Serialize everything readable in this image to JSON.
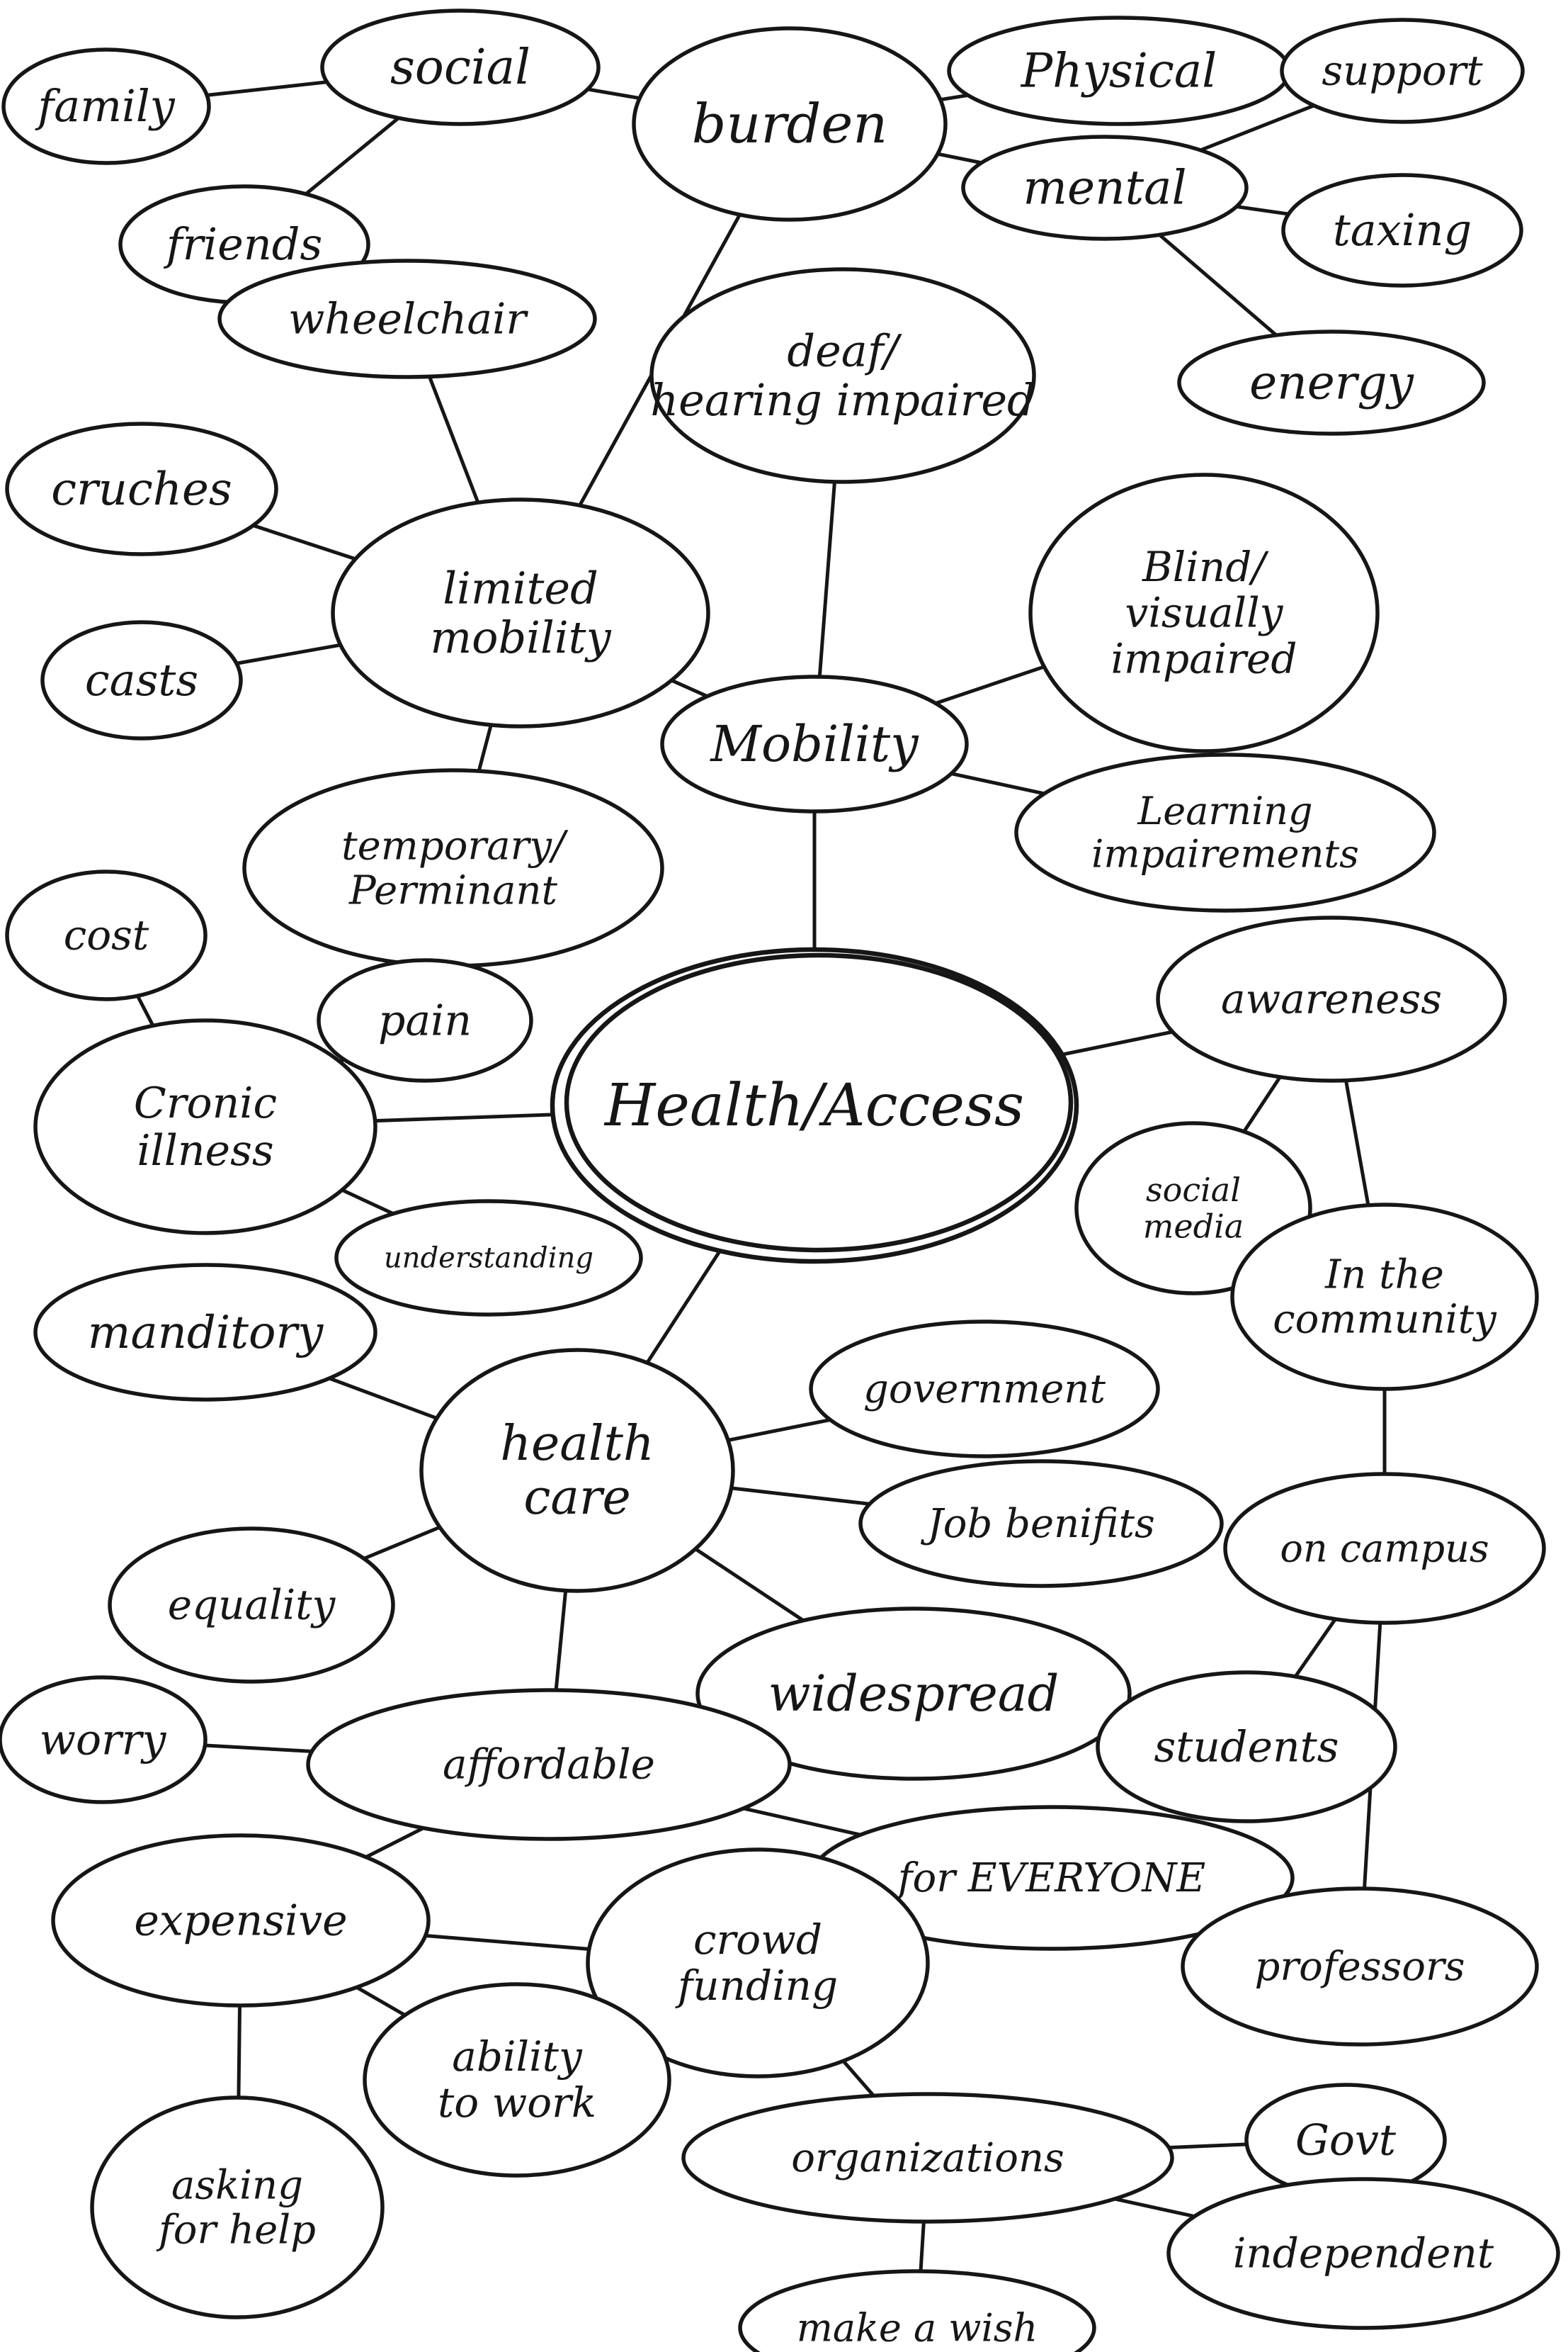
{
  "diagram": {
    "type": "mind-map",
    "stroke_color": "#161616",
    "background_color": "#ffffff",
    "central": "Health/Access",
    "nodes": [
      {
        "id": "center",
        "label": [
          "Health/Access"
        ]
      },
      {
        "id": "family",
        "label": [
          "family"
        ]
      },
      {
        "id": "social",
        "label": [
          "social"
        ]
      },
      {
        "id": "friends",
        "label": [
          "friends"
        ]
      },
      {
        "id": "burden",
        "label": [
          "burden"
        ]
      },
      {
        "id": "physical",
        "label": [
          "Physical"
        ]
      },
      {
        "id": "support",
        "label": [
          "support"
        ]
      },
      {
        "id": "mental",
        "label": [
          "mental"
        ]
      },
      {
        "id": "taxing",
        "label": [
          "taxing"
        ]
      },
      {
        "id": "energy",
        "label": [
          "energy"
        ]
      },
      {
        "id": "wheelchair",
        "label": [
          "wheelchair"
        ]
      },
      {
        "id": "deaf",
        "label": [
          "deaf/",
          "hearing impaired"
        ]
      },
      {
        "id": "cruches",
        "label": [
          "cruches"
        ]
      },
      {
        "id": "limited",
        "label": [
          "limited",
          "mobility"
        ]
      },
      {
        "id": "casts",
        "label": [
          "casts"
        ]
      },
      {
        "id": "blind",
        "label": [
          "Blind/",
          "visually",
          "impaired"
        ]
      },
      {
        "id": "mobility",
        "label": [
          "Mobility"
        ]
      },
      {
        "id": "temporary",
        "label": [
          "temporary/",
          "Perminant"
        ]
      },
      {
        "id": "learning",
        "label": [
          "Learning",
          "impairements"
        ]
      },
      {
        "id": "cost",
        "label": [
          "cost"
        ]
      },
      {
        "id": "pain",
        "label": [
          "pain"
        ]
      },
      {
        "id": "awareness",
        "label": [
          "awareness"
        ]
      },
      {
        "id": "cronic",
        "label": [
          "Cronic",
          "illness"
        ]
      },
      {
        "id": "socialmedia",
        "label": [
          "social",
          "media"
        ]
      },
      {
        "id": "understanding",
        "label": [
          "understanding"
        ]
      },
      {
        "id": "community",
        "label": [
          "In the",
          "community"
        ]
      },
      {
        "id": "manditory",
        "label": [
          "manditory"
        ]
      },
      {
        "id": "healthcare",
        "label": [
          "health",
          "care"
        ]
      },
      {
        "id": "government",
        "label": [
          "government"
        ]
      },
      {
        "id": "jobbenefits",
        "label": [
          "Job benifits"
        ]
      },
      {
        "id": "oncampus",
        "label": [
          "on campus"
        ]
      },
      {
        "id": "equality",
        "label": [
          "equality"
        ]
      },
      {
        "id": "widespread",
        "label": [
          "widespread"
        ]
      },
      {
        "id": "worry",
        "label": [
          "worry"
        ]
      },
      {
        "id": "affordable",
        "label": [
          "affordable"
        ]
      },
      {
        "id": "students",
        "label": [
          "students"
        ]
      },
      {
        "id": "everyone",
        "label": [
          "for EVERYONE"
        ]
      },
      {
        "id": "expensive",
        "label": [
          "expensive"
        ]
      },
      {
        "id": "crowdfunding",
        "label": [
          "crowd",
          "funding"
        ]
      },
      {
        "id": "professors",
        "label": [
          "professors"
        ]
      },
      {
        "id": "ability",
        "label": [
          "ability",
          "to work"
        ]
      },
      {
        "id": "asking",
        "label": [
          "asking",
          "for help"
        ]
      },
      {
        "id": "organizations",
        "label": [
          "organizations"
        ]
      },
      {
        "id": "govt",
        "label": [
          "Govt"
        ]
      },
      {
        "id": "independent",
        "label": [
          "independent"
        ]
      },
      {
        "id": "makeawish",
        "label": [
          "make a wish"
        ]
      }
    ],
    "edges": [
      [
        "family",
        "social"
      ],
      [
        "social",
        "friends"
      ],
      [
        "social",
        "burden"
      ],
      [
        "burden",
        "physical"
      ],
      [
        "burden",
        "mental"
      ],
      [
        "burden",
        "limited"
      ],
      [
        "mental",
        "support"
      ],
      [
        "mental",
        "taxing"
      ],
      [
        "mental",
        "energy"
      ],
      [
        "wheelchair",
        "limited"
      ],
      [
        "cruches",
        "limited"
      ],
      [
        "casts",
        "limited"
      ],
      [
        "limited",
        "temporary"
      ],
      [
        "limited",
        "mobility"
      ],
      [
        "deaf",
        "mobility"
      ],
      [
        "blind",
        "mobility"
      ],
      [
        "learning",
        "mobility"
      ],
      [
        "mobility",
        "center"
      ],
      [
        "cost",
        "cronic"
      ],
      [
        "cronic",
        "pain"
      ],
      [
        "cronic",
        "center"
      ],
      [
        "cronic",
        "understanding"
      ],
      [
        "center",
        "awareness"
      ],
      [
        "center",
        "healthcare"
      ],
      [
        "awareness",
        "socialmedia"
      ],
      [
        "awareness",
        "community"
      ],
      [
        "community",
        "oncampus"
      ],
      [
        "healthcare",
        "manditory"
      ],
      [
        "healthcare",
        "government"
      ],
      [
        "healthcare",
        "jobbenefits"
      ],
      [
        "healthcare",
        "equality"
      ],
      [
        "healthcare",
        "widespread"
      ],
      [
        "healthcare",
        "affordable"
      ],
      [
        "worry",
        "affordable"
      ],
      [
        "affordable",
        "everyone"
      ],
      [
        "affordable",
        "expensive"
      ],
      [
        "oncampus",
        "students"
      ],
      [
        "oncampus",
        "professors"
      ],
      [
        "expensive",
        "crowdfunding"
      ],
      [
        "expensive",
        "ability"
      ],
      [
        "expensive",
        "asking"
      ],
      [
        "crowdfunding",
        "ability"
      ],
      [
        "crowdfunding",
        "organizations"
      ],
      [
        "organizations",
        "govt"
      ],
      [
        "organizations",
        "independent"
      ],
      [
        "organizations",
        "makeawish"
      ]
    ]
  }
}
